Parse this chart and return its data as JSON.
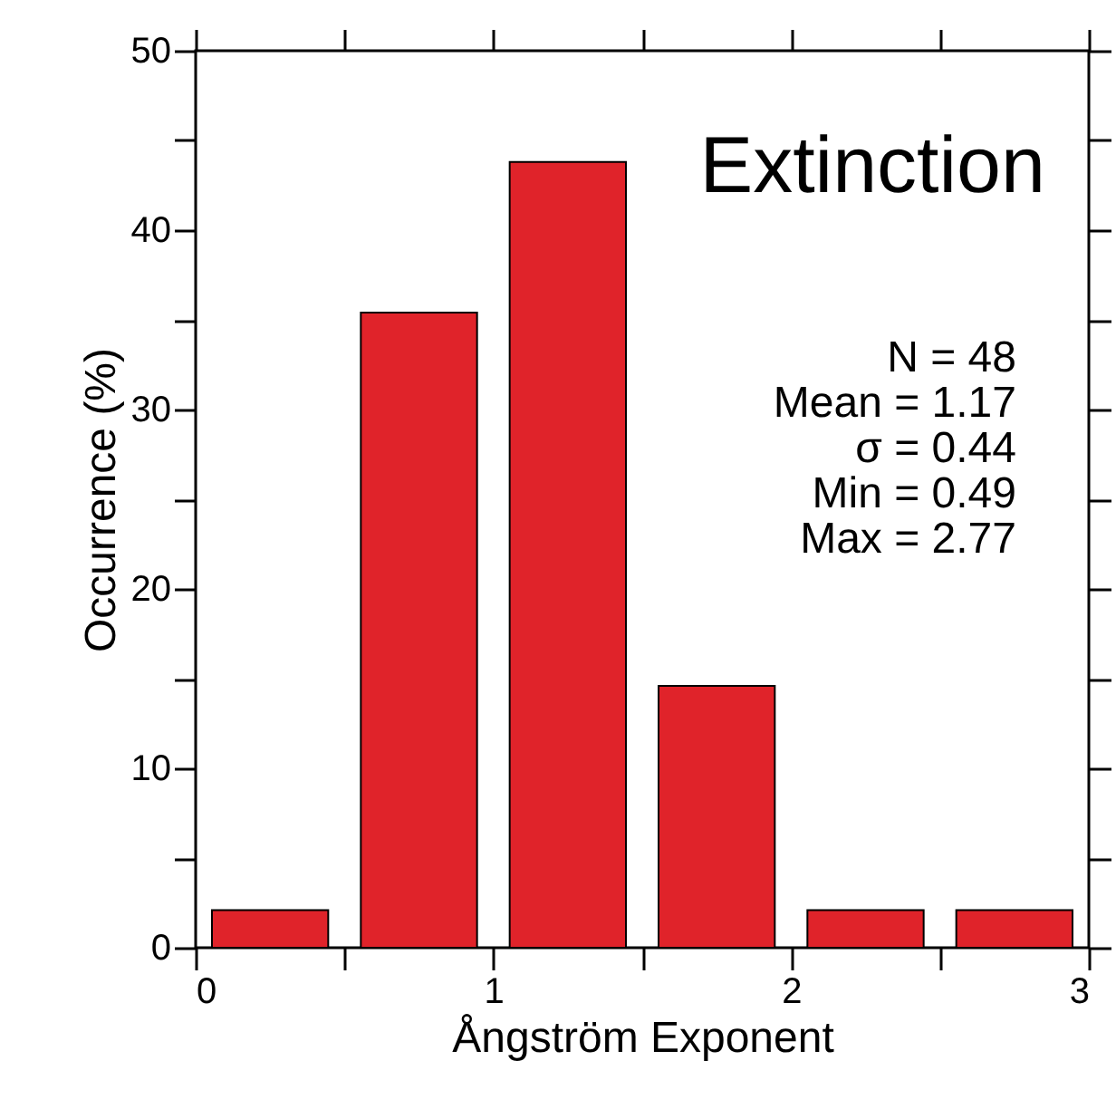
{
  "chart_data": {
    "type": "histogram",
    "xlabel": "Ångström Exponent",
    "ylabel": "Occurrence (%)",
    "bins": [
      0,
      0.5,
      1,
      1.5,
      2,
      2.5,
      3
    ],
    "values": [
      2.1,
      35.4,
      43.8,
      14.6,
      2.1,
      2.1
    ],
    "color": "#e0232a",
    "xlim": [
      0,
      3
    ],
    "xticks": [
      0,
      {
        "value": 0.5,
        "label": null
      },
      1,
      {
        "value": 1.5,
        "label": null
      },
      2,
      {
        "value": 2.5,
        "label": null
      },
      3
    ],
    "ylim": [
      0,
      50
    ],
    "yticks": [
      0,
      {
        "value": 5,
        "label": null
      },
      10,
      {
        "value": 15,
        "label": null
      },
      20,
      {
        "value": 25,
        "label": null
      },
      30,
      {
        "value": 35,
        "label": null
      },
      40,
      {
        "value": 45,
        "label": null
      },
      50
    ],
    "grid": false,
    "annotations": [
      "Extinction",
      "N = 48",
      "Mean = 1.17",
      "σ = 0.44",
      "Min = 0.49",
      "Max = 2.77"
    ]
  }
}
